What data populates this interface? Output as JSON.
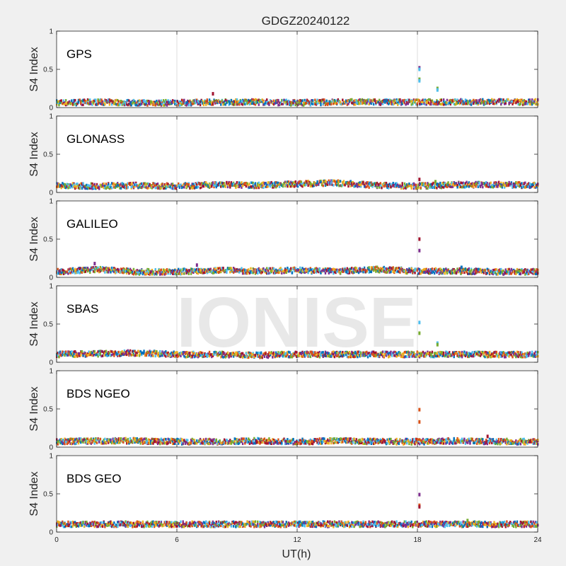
{
  "chart_data": {
    "type": "scatter",
    "title": "GDGZ20240122",
    "xlabel": "UT(h)",
    "ylabel": "S4 Index",
    "xlim": [
      0,
      24
    ],
    "ylim": [
      0,
      1
    ],
    "xticks": [
      "0",
      "6",
      "12",
      "18",
      "24"
    ],
    "yticks": [
      "0",
      "0.5",
      "1"
    ],
    "grid": true,
    "watermark": "IONISE",
    "series_colors": [
      "#0072BD",
      "#D95319",
      "#EDB120",
      "#7E2F8E",
      "#77AC30",
      "#4DBEEE",
      "#A2142F"
    ],
    "panels": [
      {
        "name": "GPS",
        "band": [
          {
            "x": 0,
            "y": 0.06
          },
          {
            "x": 2,
            "y": 0.07
          },
          {
            "x": 4,
            "y": 0.06
          },
          {
            "x": 6,
            "y": 0.06
          },
          {
            "x": 8,
            "y": 0.07
          },
          {
            "x": 10,
            "y": 0.07
          },
          {
            "x": 12,
            "y": 0.06
          },
          {
            "x": 14,
            "y": 0.07
          },
          {
            "x": 16,
            "y": 0.07
          },
          {
            "x": 18,
            "y": 0.07
          },
          {
            "x": 20,
            "y": 0.07
          },
          {
            "x": 22,
            "y": 0.07
          },
          {
            "x": 24,
            "y": 0.07
          }
        ],
        "outliers": [
          {
            "x": 18.1,
            "y": 0.52,
            "c": 3
          },
          {
            "x": 18.1,
            "y": 0.5,
            "c": 5
          },
          {
            "x": 18.1,
            "y": 0.37,
            "c": 4
          },
          {
            "x": 18.1,
            "y": 0.35,
            "c": 5
          },
          {
            "x": 19.0,
            "y": 0.25,
            "c": 4
          },
          {
            "x": 19.0,
            "y": 0.23,
            "c": 5
          },
          {
            "x": 7.8,
            "y": 0.18,
            "c": 6
          }
        ]
      },
      {
        "name": "GLONASS",
        "band": [
          {
            "x": 0,
            "y": 0.09
          },
          {
            "x": 2,
            "y": 0.08
          },
          {
            "x": 4,
            "y": 0.09
          },
          {
            "x": 6,
            "y": 0.08
          },
          {
            "x": 8,
            "y": 0.1
          },
          {
            "x": 10,
            "y": 0.09
          },
          {
            "x": 12,
            "y": 0.11
          },
          {
            "x": 14,
            "y": 0.12
          },
          {
            "x": 16,
            "y": 0.09
          },
          {
            "x": 18,
            "y": 0.08
          },
          {
            "x": 20,
            "y": 0.1
          },
          {
            "x": 22,
            "y": 0.1
          },
          {
            "x": 24,
            "y": 0.09
          }
        ],
        "outliers": [
          {
            "x": 18.1,
            "y": 0.17,
            "c": 6
          },
          {
            "x": 18.9,
            "y": 0.14,
            "c": 4
          }
        ]
      },
      {
        "name": "GALILEO",
        "band": [
          {
            "x": 0,
            "y": 0.07
          },
          {
            "x": 2,
            "y": 0.1
          },
          {
            "x": 4,
            "y": 0.07
          },
          {
            "x": 6,
            "y": 0.07
          },
          {
            "x": 8,
            "y": 0.09
          },
          {
            "x": 10,
            "y": 0.08
          },
          {
            "x": 12,
            "y": 0.09
          },
          {
            "x": 14,
            "y": 0.08
          },
          {
            "x": 16,
            "y": 0.1
          },
          {
            "x": 18,
            "y": 0.08
          },
          {
            "x": 20,
            "y": 0.08
          },
          {
            "x": 22,
            "y": 0.07
          },
          {
            "x": 24,
            "y": 0.07
          }
        ],
        "outliers": [
          {
            "x": 18.1,
            "y": 0.5,
            "c": 6
          },
          {
            "x": 18.1,
            "y": 0.35,
            "c": 3
          },
          {
            "x": 1.9,
            "y": 0.18,
            "c": 3
          },
          {
            "x": 7.0,
            "y": 0.16,
            "c": 3
          },
          {
            "x": 20.2,
            "y": 0.13,
            "c": 0
          }
        ]
      },
      {
        "name": "SBAS",
        "band": [
          {
            "x": 0,
            "y": 0.1
          },
          {
            "x": 2,
            "y": 0.11
          },
          {
            "x": 4,
            "y": 0.12
          },
          {
            "x": 6,
            "y": 0.1
          },
          {
            "x": 8,
            "y": 0.1
          },
          {
            "x": 10,
            "y": 0.09
          },
          {
            "x": 12,
            "y": 0.1
          },
          {
            "x": 14,
            "y": 0.1
          },
          {
            "x": 16,
            "y": 0.1
          },
          {
            "x": 18,
            "y": 0.1
          },
          {
            "x": 20,
            "y": 0.1
          },
          {
            "x": 22,
            "y": 0.1
          },
          {
            "x": 24,
            "y": 0.1
          }
        ],
        "outliers": [
          {
            "x": 18.1,
            "y": 0.52,
            "c": 5
          },
          {
            "x": 18.1,
            "y": 0.38,
            "c": 4
          },
          {
            "x": 19.0,
            "y": 0.25,
            "c": 5
          },
          {
            "x": 19.0,
            "y": 0.23,
            "c": 4
          }
        ]
      },
      {
        "name": "BDS NGEO",
        "band": [
          {
            "x": 0,
            "y": 0.07
          },
          {
            "x": 2,
            "y": 0.08
          },
          {
            "x": 4,
            "y": 0.08
          },
          {
            "x": 6,
            "y": 0.07
          },
          {
            "x": 8,
            "y": 0.07
          },
          {
            "x": 10,
            "y": 0.08
          },
          {
            "x": 12,
            "y": 0.07
          },
          {
            "x": 14,
            "y": 0.08
          },
          {
            "x": 16,
            "y": 0.07
          },
          {
            "x": 18,
            "y": 0.07
          },
          {
            "x": 20,
            "y": 0.08
          },
          {
            "x": 22,
            "y": 0.07
          },
          {
            "x": 24,
            "y": 0.07
          }
        ],
        "outliers": [
          {
            "x": 18.1,
            "y": 0.49,
            "c": 1
          },
          {
            "x": 18.1,
            "y": 0.33,
            "c": 1
          },
          {
            "x": 21.5,
            "y": 0.14,
            "c": 6
          }
        ]
      },
      {
        "name": "BDS GEO",
        "band": [
          {
            "x": 0,
            "y": 0.1
          },
          {
            "x": 2,
            "y": 0.1
          },
          {
            "x": 4,
            "y": 0.1
          },
          {
            "x": 6,
            "y": 0.1
          },
          {
            "x": 8,
            "y": 0.1
          },
          {
            "x": 10,
            "y": 0.1
          },
          {
            "x": 12,
            "y": 0.1
          },
          {
            "x": 14,
            "y": 0.1
          },
          {
            "x": 16,
            "y": 0.1
          },
          {
            "x": 18,
            "y": 0.1
          },
          {
            "x": 20,
            "y": 0.1
          },
          {
            "x": 22,
            "y": 0.1
          },
          {
            "x": 24,
            "y": 0.1
          }
        ],
        "outliers": [
          {
            "x": 18.1,
            "y": 0.49,
            "c": 3
          },
          {
            "x": 18.1,
            "y": 0.35,
            "c": 1
          },
          {
            "x": 18.1,
            "y": 0.33,
            "c": 6
          },
          {
            "x": 20.5,
            "y": 0.15,
            "c": 4
          }
        ]
      }
    ]
  }
}
